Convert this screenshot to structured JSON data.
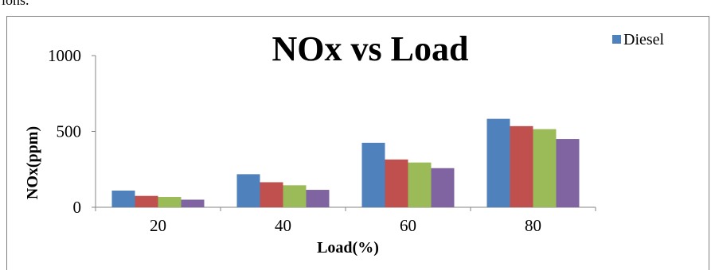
{
  "fragment_text": "ions.",
  "chart_data": {
    "type": "bar",
    "title": "NOx vs Load",
    "xlabel": "Load(%)",
    "ylabel": "NOx(ppm)",
    "categories": [
      "20",
      "40",
      "60",
      "80"
    ],
    "ylim": [
      0,
      1000
    ],
    "yticks": [
      "0",
      "500",
      "1000"
    ],
    "grid": false,
    "legend_position": "top-right",
    "series": [
      {
        "name": "Diesel",
        "color": "#4f81bd",
        "values": [
          110,
          218,
          425,
          583
        ]
      },
      {
        "name": "",
        "color": "#c0504d",
        "values": [
          75,
          165,
          315,
          535
        ]
      },
      {
        "name": "",
        "color": "#9bbb59",
        "values": [
          68,
          145,
          295,
          515
        ]
      },
      {
        "name": "",
        "color": "#8064a2",
        "values": [
          50,
          115,
          258,
          450
        ]
      }
    ]
  }
}
